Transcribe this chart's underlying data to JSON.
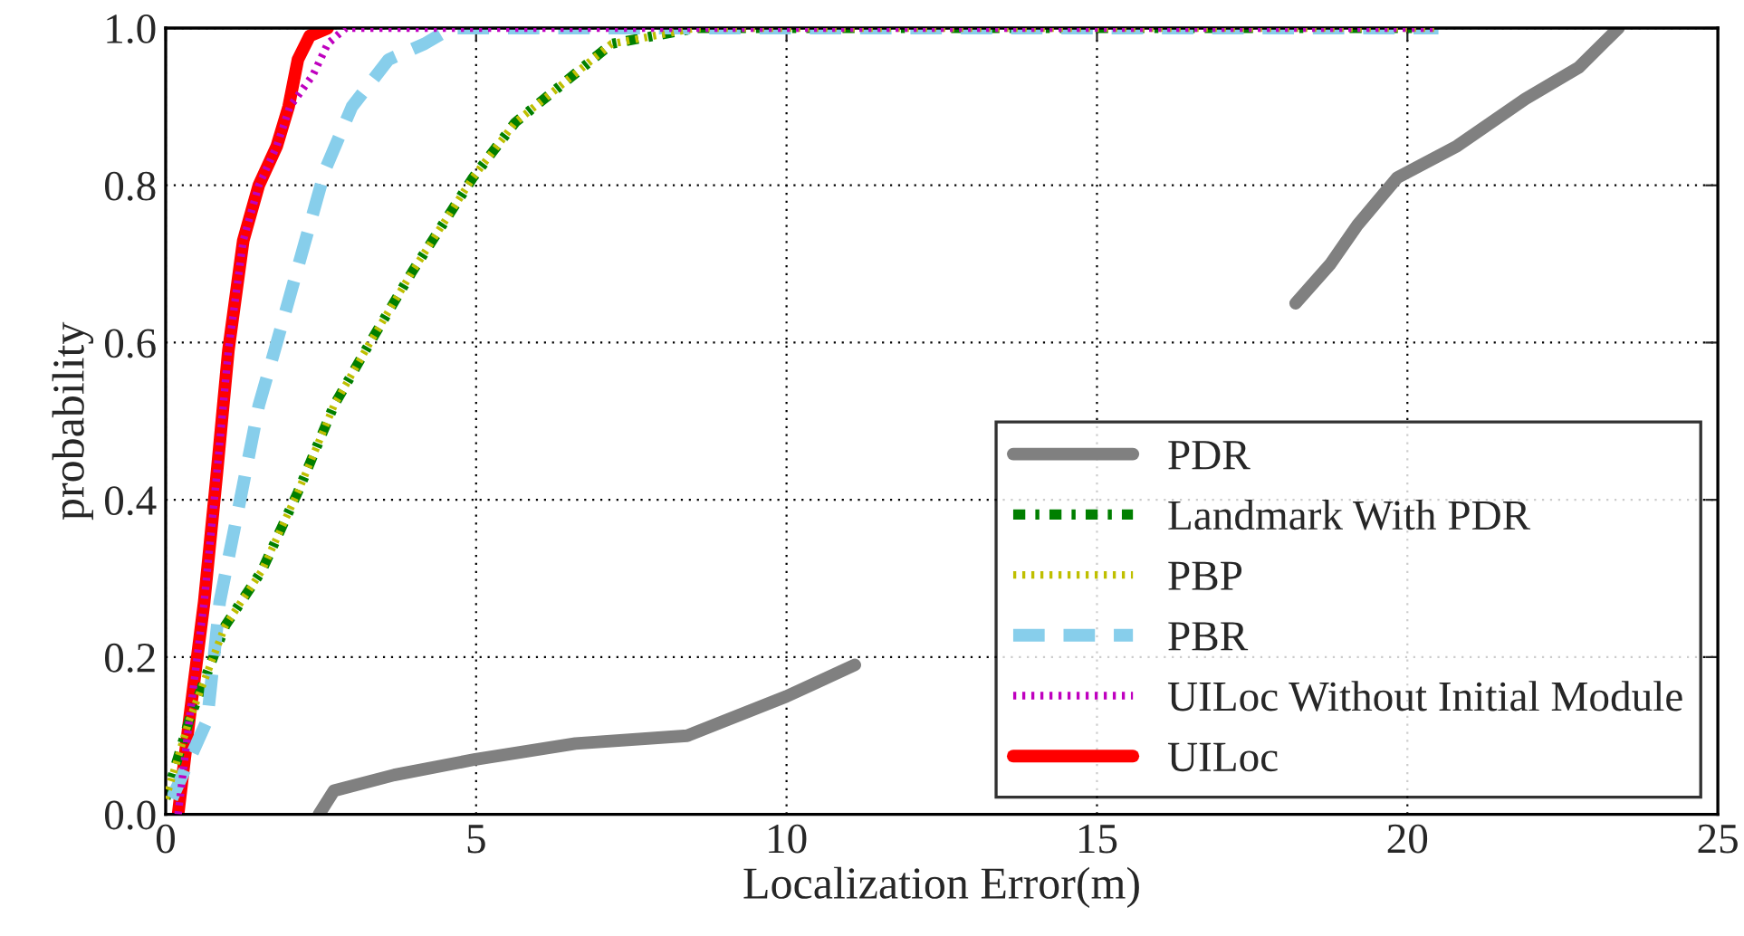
{
  "chart_data": {
    "type": "line",
    "xlabel": "Localization Error(m)",
    "ylabel": "probability",
    "xlim": [
      0,
      25
    ],
    "xticks": [
      0,
      5,
      10,
      15,
      20,
      25
    ],
    "ylim": [
      0.0,
      1.0
    ],
    "yticks": [
      {
        "value": 0,
        "label": "0.0"
      },
      {
        "value": 0.2,
        "label": "0.2"
      },
      {
        "value": 0.4,
        "label": "0.4"
      },
      {
        "value": 0.6,
        "label": "0.6"
      },
      {
        "value": 0.8,
        "label": "0.8"
      },
      {
        "value": 1.0,
        "label": "1.0"
      }
    ],
    "grid": true,
    "legend": "bottom right",
    "series": [
      {
        "name": "PDR",
        "color": "#808080",
        "line_style": "solid",
        "x": [
          2.47,
          2.71,
          3.68,
          4.99,
          6.6,
          8.4,
          10.0,
          11.1,
          14.5,
          18.2,
          18.76,
          19.2,
          19.84,
          20.8,
          21.9,
          22.76,
          23.4
        ],
        "values": [
          0.0,
          0.03,
          0.05,
          0.07,
          0.09,
          0.1,
          0.15,
          0.19,
          null,
          0.65,
          0.7,
          0.75,
          0.81,
          0.85,
          0.91,
          0.95,
          1.0
        ]
      },
      {
        "name": "Landmark With PDR",
        "color": "#007f00",
        "line_style": "dashdot",
        "x": [
          0.0,
          0.38,
          0.96,
          1.55,
          2.13,
          2.71,
          3.29,
          3.97,
          4.95,
          5.63,
          6.41,
          7.18,
          7.86,
          8.54,
          20.5
        ],
        "values": [
          0.02,
          0.12,
          0.24,
          0.31,
          0.41,
          0.52,
          0.6,
          0.69,
          0.81,
          0.88,
          0.93,
          0.98,
          0.99,
          1.0,
          1.0
        ]
      },
      {
        "name": "PBP",
        "color": "#bfbf00",
        "line_style": "dotted",
        "x": [
          0.0,
          0.38,
          0.96,
          1.55,
          2.13,
          2.71,
          3.29,
          3.97,
          4.95,
          5.63,
          6.41,
          7.18,
          7.86,
          8.54,
          20.5
        ],
        "values": [
          0.02,
          0.12,
          0.24,
          0.31,
          0.41,
          0.52,
          0.6,
          0.69,
          0.81,
          0.88,
          0.93,
          0.98,
          0.99,
          1.0,
          1.0
        ]
      },
      {
        "name": "PBR",
        "color": "#87ceeb",
        "line_style": "dashed",
        "x": [
          0.1,
          0.67,
          0.87,
          1.2,
          1.5,
          1.79,
          2.18,
          2.57,
          3.0,
          3.59,
          4.17,
          4.6,
          20.5
        ],
        "values": [
          0.02,
          0.12,
          0.27,
          0.4,
          0.52,
          0.6,
          0.71,
          0.82,
          0.9,
          0.96,
          0.98,
          1.0,
          1.0
        ]
      },
      {
        "name": "UILoc Without Initial Module",
        "color": "#bf00bf",
        "line_style": "dotted",
        "x": [
          0.2,
          0.38,
          0.62,
          0.82,
          1.01,
          1.25,
          1.5,
          1.79,
          2.0,
          2.37,
          2.61,
          2.9,
          20.5
        ],
        "values": [
          0.0,
          0.12,
          0.27,
          0.43,
          0.59,
          0.73,
          0.8,
          0.85,
          0.9,
          0.94,
          0.98,
          1.0,
          1.0
        ]
      },
      {
        "name": "UILoc",
        "color": "#ff0000",
        "line_style": "solid",
        "x": [
          0.2,
          0.38,
          0.62,
          0.82,
          1.01,
          1.25,
          1.5,
          1.79,
          1.98,
          2.13,
          2.32,
          2.61
        ],
        "values": [
          0.0,
          0.12,
          0.27,
          0.43,
          0.59,
          0.73,
          0.8,
          0.85,
          0.9,
          0.96,
          0.99,
          1.0
        ]
      }
    ]
  }
}
